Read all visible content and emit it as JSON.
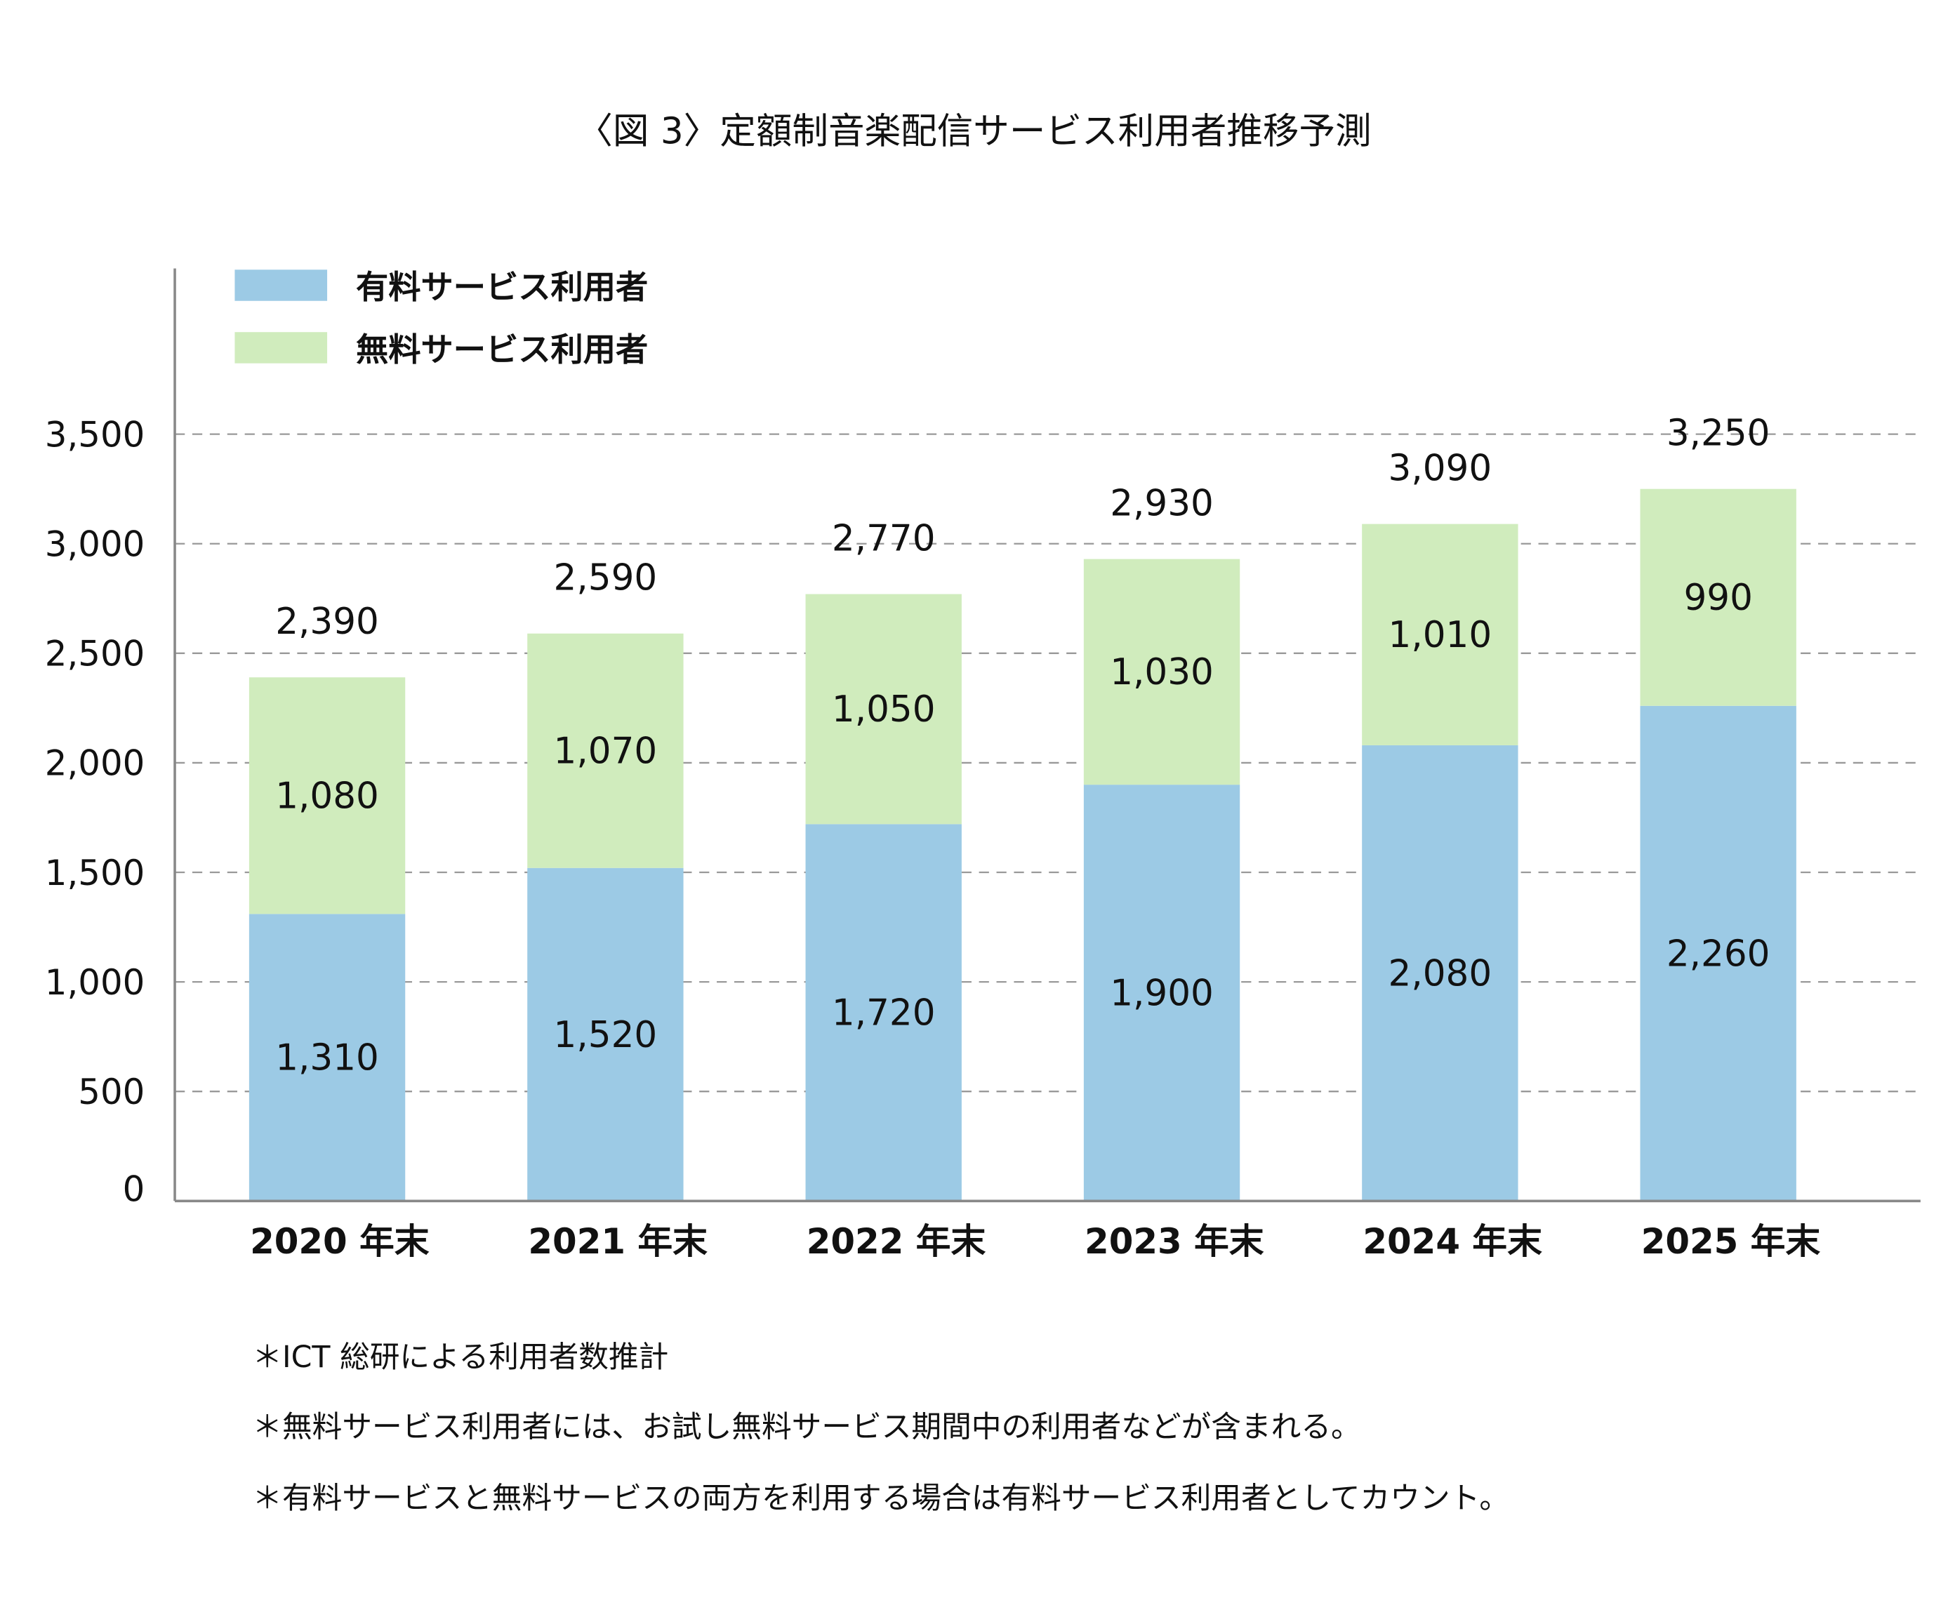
{
  "chart_data": {
    "type": "bar",
    "stacked": true,
    "title": "〈図 3〉定額制音楽配信サービス利用者推移予測",
    "xlabel": "",
    "ylabel": "",
    "categories": [
      "2020 年末",
      "2021 年末",
      "2022 年末",
      "2023 年末",
      "2024 年末",
      "2025 年末"
    ],
    "series": [
      {
        "name": "有料サービス利用者",
        "color": "#9ccae5",
        "values": [
          1310,
          1520,
          1720,
          1900,
          2080,
          2260
        ]
      },
      {
        "name": "無料サービス利用者",
        "color": "#d0ecbd",
        "values": [
          1080,
          1070,
          1050,
          1030,
          1010,
          990
        ]
      }
    ],
    "totals": [
      2390,
      2590,
      2770,
      2930,
      3090,
      3250
    ],
    "total_labels": [
      "2,390",
      "2,590",
      "2,770",
      "2,930",
      "3,090",
      "3,250"
    ],
    "value_labels": [
      [
        "1,310",
        "1,520",
        "1,720",
        "1,900",
        "2,080",
        "2,260"
      ],
      [
        "1,080",
        "1,070",
        "1,050",
        "1,030",
        "1,010",
        "990"
      ]
    ],
    "ylim": [
      0,
      3500
    ],
    "yticks": [
      0,
      500,
      1000,
      1500,
      2000,
      2500,
      3000,
      3500
    ],
    "ytick_labels": [
      "0",
      "500",
      "1,000",
      "1,500",
      "2,000",
      "2,500",
      "3,000",
      "3,500"
    ],
    "grid": "horizontal dashed",
    "legend_position": "top-left",
    "notes": [
      "＊ICT 総研による利用者数推計",
      "＊無料サービス利用者には、お試し無料サービス期間中の利用者などが含まれる。",
      "＊有料サービスと無料サービスの両方を利用する場合は有料サービス利用者としてカウント。"
    ]
  }
}
